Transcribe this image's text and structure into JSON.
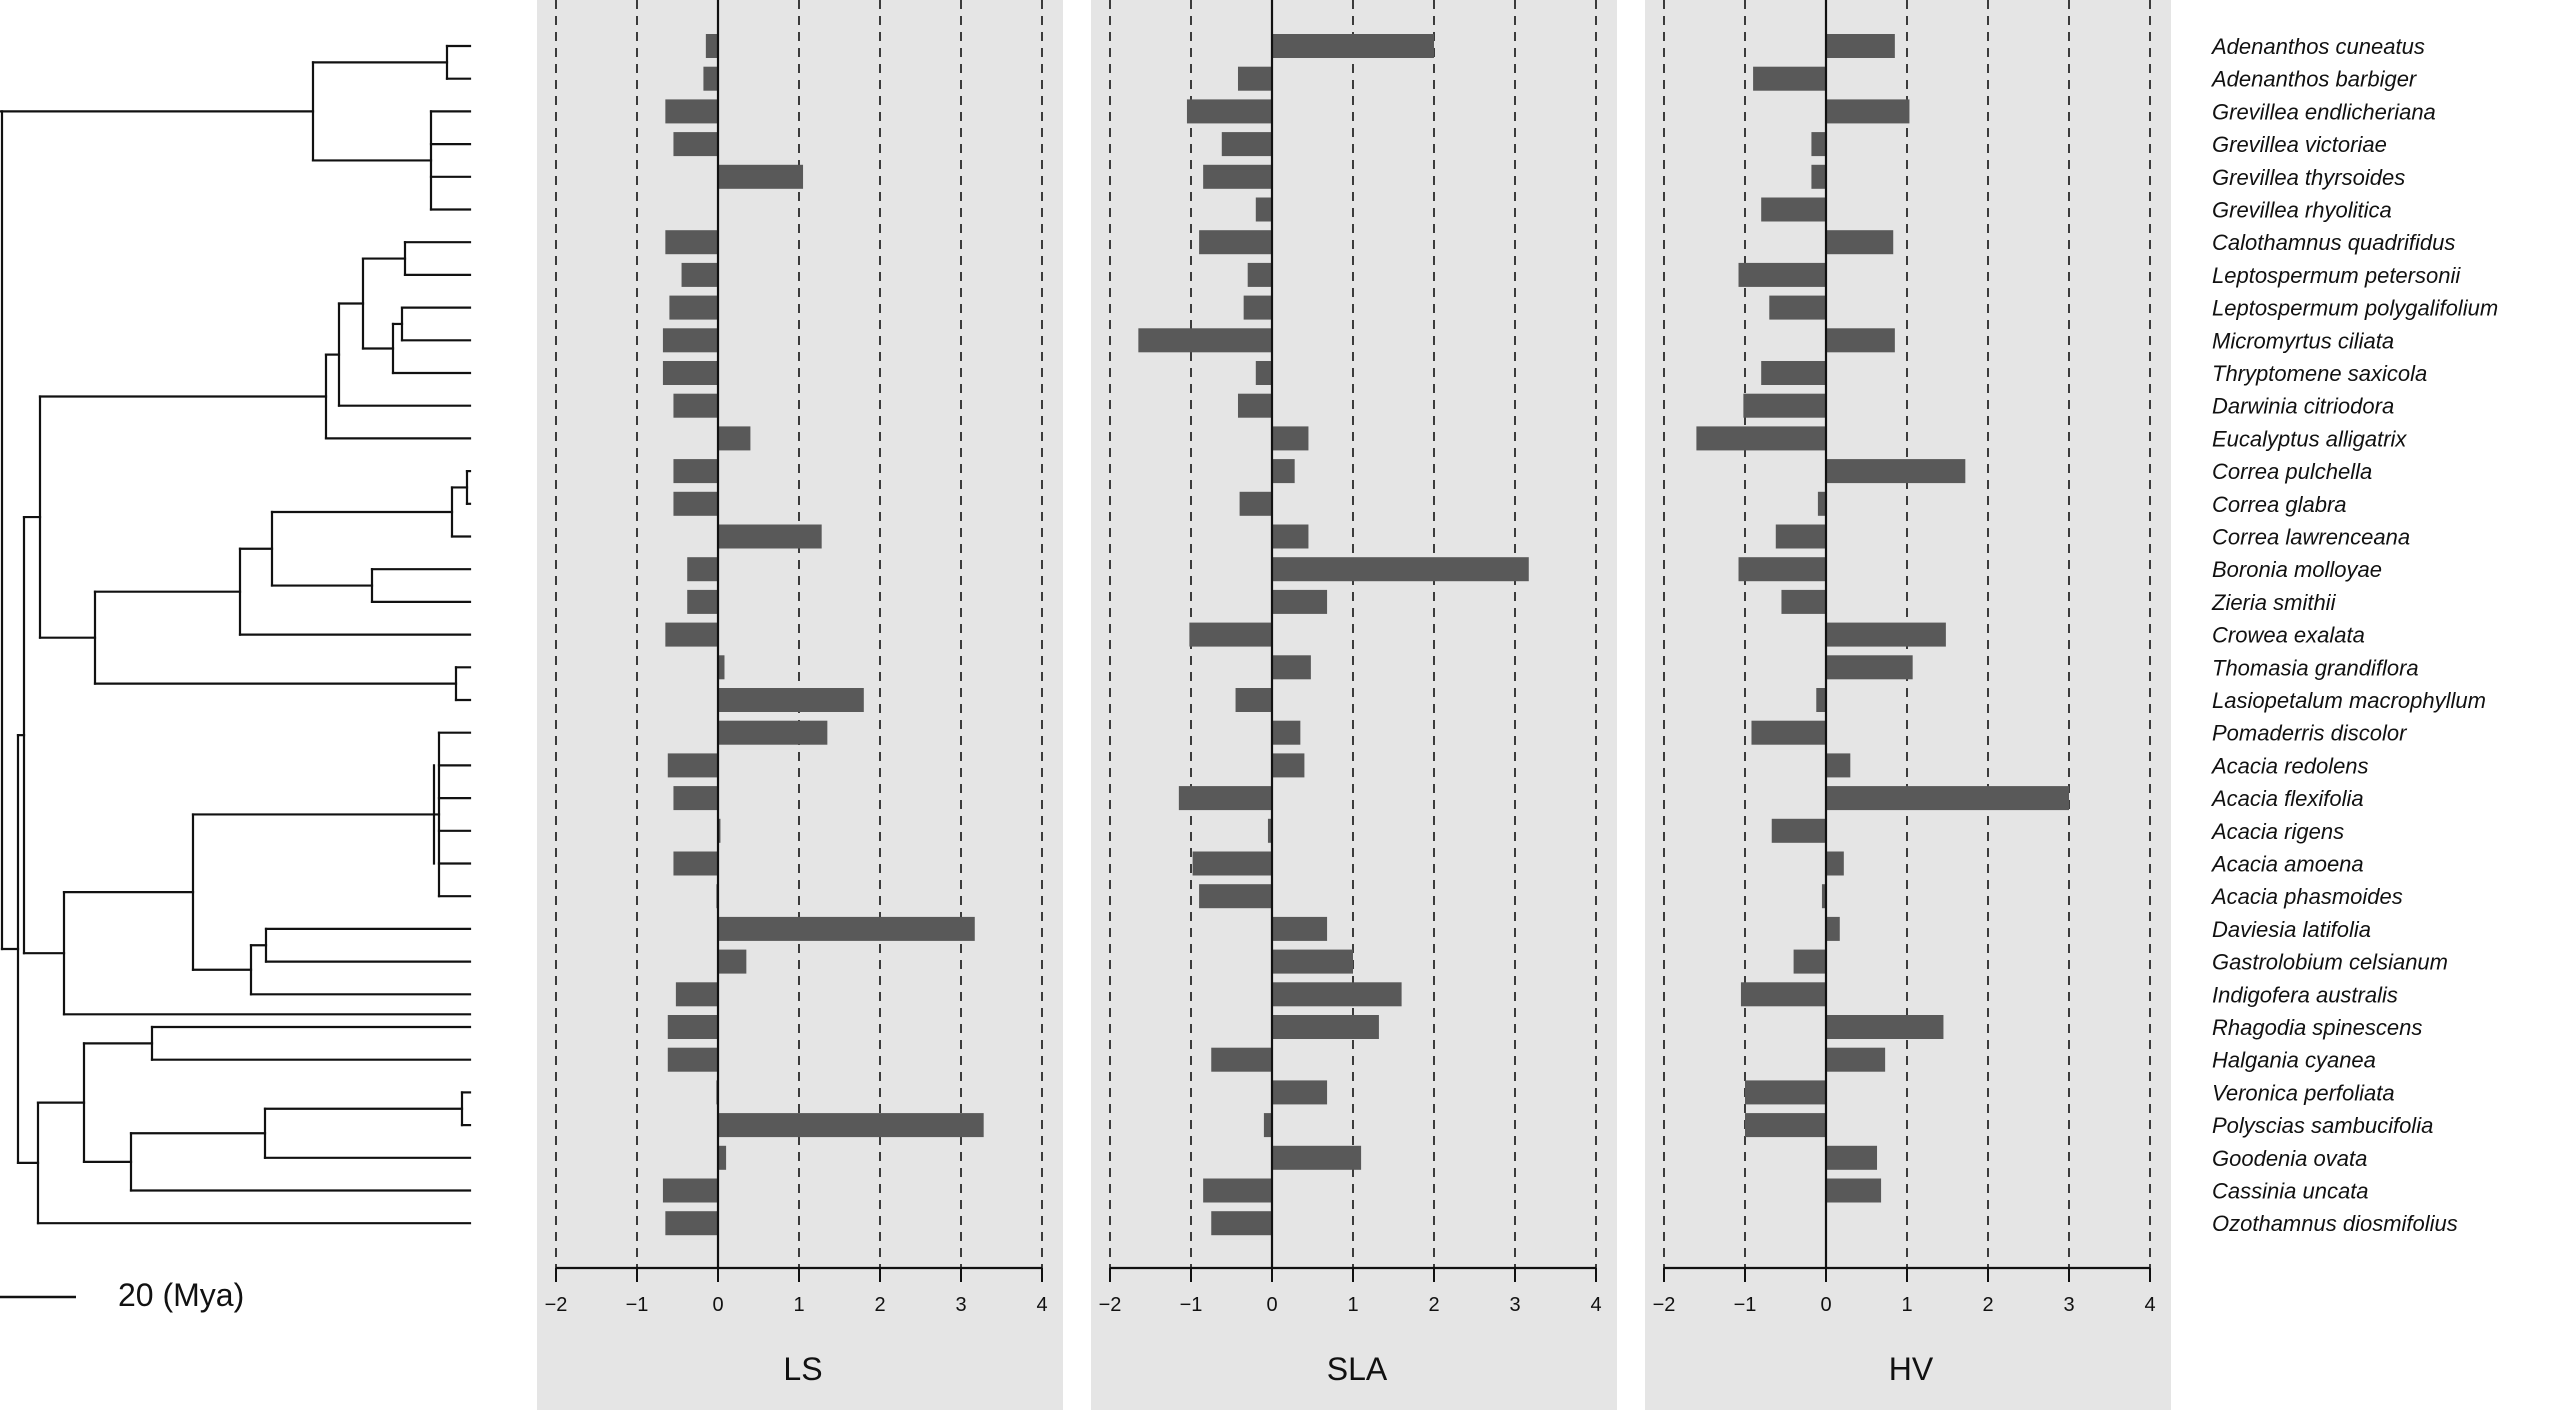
{
  "chart_data": {
    "type": "bar",
    "orientation": "horizontal",
    "panels": [
      "LS",
      "SLA",
      "HV"
    ],
    "xlim": [
      -2,
      4
    ],
    "xticks": [
      -2,
      -1,
      0,
      1,
      2,
      3,
      4
    ],
    "xtick_labels": [
      "−2",
      "−1",
      "0",
      "1",
      "2",
      "3",
      "4"
    ],
    "grid": "dashed vertical lines at integer ticks",
    "bar_color": "#595959",
    "panel_background": "#e5e5e5",
    "categories": [
      "Adenanthos cuneatus",
      "Adenanthos barbiger",
      "Grevillea endlicheriana",
      "Grevillea victoriae",
      "Grevillea thyrsoides",
      "Grevillea rhyolitica",
      "Calothamnus quadrifidus",
      "Leptospermum petersonii",
      "Leptospermum polygalifolium",
      "Micromyrtus ciliata",
      "Thryptomene saxicola",
      "Darwinia citriodora",
      "Eucalyptus alligatrix",
      "Correa pulchella",
      "Correa glabra",
      "Correa lawrenceana",
      "Boronia molloyae",
      "Zieria smithii",
      "Crowea exalata",
      "Thomasia grandiflora",
      "Lasiopetalum macrophyllum",
      "Pomaderris discolor",
      "Acacia redolens",
      "Acacia flexifolia",
      "Acacia rigens",
      "Acacia amoena",
      "Acacia phasmoides",
      "Daviesia latifolia",
      "Gastrolobium celsianum",
      "Indigofera australis",
      "Rhagodia spinescens",
      "Halgania cyanea",
      "Veronica perfoliata",
      "Polyscias sambucifolia",
      "Goodenia ovata",
      "Cassinia uncata",
      "Ozothamnus diosmifolius"
    ],
    "series": [
      {
        "name": "LS",
        "values": [
          -0.15,
          -0.18,
          -0.65,
          -0.55,
          1.05,
          0.0,
          -0.65,
          -0.45,
          -0.6,
          -0.68,
          -0.68,
          -0.55,
          0.4,
          -0.55,
          -0.55,
          1.28,
          -0.38,
          -0.38,
          -0.65,
          0.08,
          1.8,
          1.35,
          -0.62,
          -0.55,
          0.03,
          -0.55,
          -0.02,
          3.17,
          0.35,
          -0.52,
          -0.62,
          -0.62,
          -0.02,
          3.28,
          0.1,
          -0.68,
          -0.65
        ]
      },
      {
        "name": "SLA",
        "values": [
          2.0,
          -0.42,
          -1.05,
          -0.62,
          -0.85,
          -0.2,
          -0.9,
          -0.3,
          -0.35,
          -1.65,
          -0.2,
          -0.42,
          0.45,
          0.28,
          -0.4,
          0.45,
          3.17,
          0.68,
          -1.02,
          0.48,
          -0.45,
          0.35,
          0.4,
          -1.15,
          -0.05,
          -0.98,
          -0.9,
          0.68,
          1.0,
          1.6,
          1.32,
          -0.75,
          0.68,
          -0.1,
          1.1,
          -0.85,
          -0.75
        ]
      },
      {
        "name": "HV",
        "values": [
          0.85,
          -0.9,
          1.03,
          -0.18,
          -0.18,
          -0.8,
          0.83,
          -1.08,
          -0.7,
          0.85,
          -0.8,
          -1.02,
          -1.6,
          1.72,
          -0.1,
          -0.62,
          -1.08,
          -0.55,
          1.48,
          1.07,
          -0.12,
          -0.92,
          0.3,
          3.0,
          -0.67,
          0.22,
          -0.05,
          0.17,
          -0.4,
          -1.05,
          1.45,
          0.73,
          -1.0,
          -1.0,
          0.63,
          0.68,
          0.0
        ]
      }
    ],
    "scale_bar_label": "20 (Mya)"
  },
  "colors": {
    "bar": "#595959",
    "panel_bg": "#e5e5e5",
    "axis": "#111111",
    "tree": "#111111"
  }
}
